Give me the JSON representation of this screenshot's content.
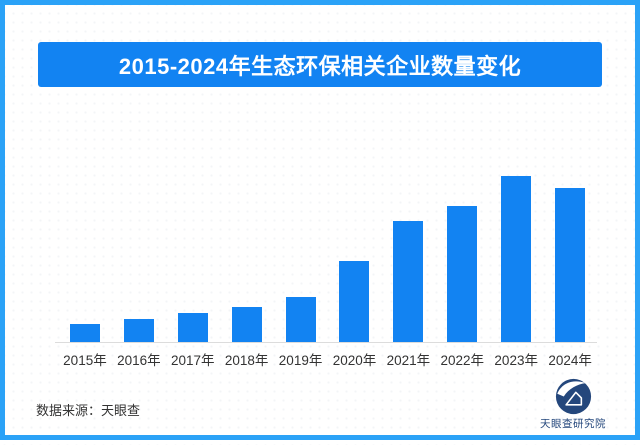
{
  "theme": {
    "frame_color": "#2ba2f7",
    "banner_color": "#1283f2",
    "bar_color": "#1283f2",
    "axis_color": "#dcdcdc",
    "text_color": "#333333",
    "logo_color": "#24477c"
  },
  "header": {
    "title": "2015-2024年生态环保相关企业数量变化"
  },
  "chart_data": {
    "type": "bar",
    "title": "2015-2024年生态环保相关企业数量变化",
    "categories": [
      "2015年",
      "2016年",
      "2017年",
      "2018年",
      "2019年",
      "2020年",
      "2021年",
      "2022年",
      "2023年",
      "2024年"
    ],
    "values": [
      10.8,
      13.9,
      17.5,
      21.1,
      27.1,
      48.8,
      72.9,
      81.9,
      100,
      92.8
    ],
    "values_note": "no numeric axis or data labels shown in image; values estimated as percent of tallest bar (2023)",
    "xlabel": "",
    "ylabel": "",
    "ylim": [
      0,
      100
    ],
    "grid": false,
    "legend": false,
    "bar_color": "#1283f2"
  },
  "footer": {
    "source_label": "数据来源：天眼查"
  },
  "logo": {
    "icon": "tianyancha-swoosh-circle",
    "text": "天眼查研究院"
  }
}
